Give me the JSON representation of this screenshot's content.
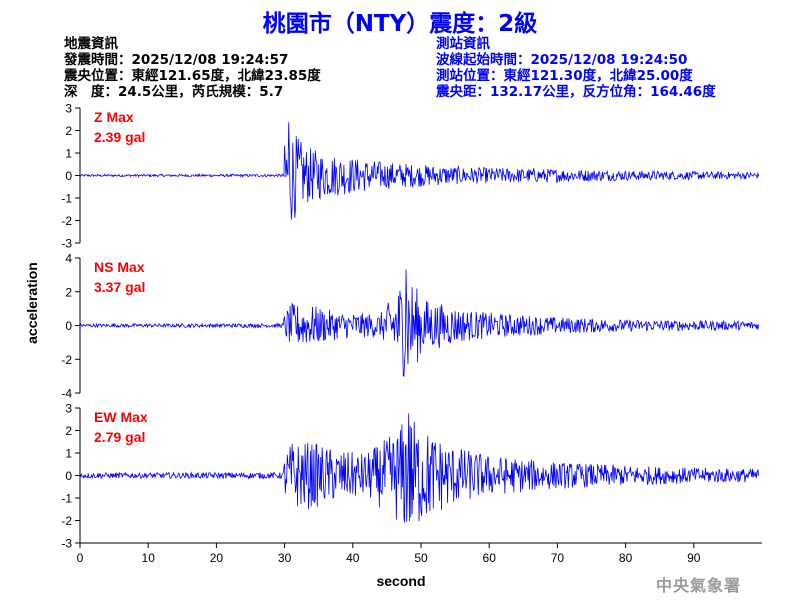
{
  "title": "桃園市（NTY）震度：2級",
  "quake_info": {
    "header": "地震資訊",
    "origin_time": "發震時間：2025/12/08 19:24:57",
    "epicenter": "震央位置：東經121.65度，北緯23.85度",
    "depth_magnitude": "深　度：24.5公里，芮氏規模：5.7"
  },
  "station_info": {
    "header": "測站資訊",
    "wave_start": "波線起始時間：2025/12/08 19:24:50",
    "station_location": "測站位置：東經121.30度，北緯25.00度",
    "distance_azimuth": "震央距：132.17公里，反方位角：164.46度"
  },
  "watermark": "中央氣象署",
  "colors": {
    "trace": "#0000ff",
    "max_label": "#ff0000",
    "axis": "#000000"
  },
  "chart_data": {
    "type": "line",
    "xlabel": "second",
    "ylabel": "acceleration",
    "xlim": [
      0,
      100
    ],
    "x_ticks": [
      0,
      10,
      20,
      30,
      40,
      50,
      60,
      70,
      80,
      90
    ],
    "grid": false,
    "panels": [
      {
        "name": "Z",
        "label": "Z Max",
        "max_text": "2.39 gal",
        "peak": 2.39,
        "ylim": [
          -3,
          3
        ],
        "y_ticks": [
          -3,
          -2,
          -1,
          0,
          1,
          2,
          3
        ],
        "envelope": [
          [
            0,
            0.05
          ],
          [
            29.8,
            0.06
          ],
          [
            30,
            1.4
          ],
          [
            30.6,
            2.39
          ],
          [
            31.5,
            1.9
          ],
          [
            33,
            1.3
          ],
          [
            36,
            1.0
          ],
          [
            40,
            0.8
          ],
          [
            45,
            0.6
          ],
          [
            50,
            0.5
          ],
          [
            55,
            0.4
          ],
          [
            60,
            0.35
          ],
          [
            70,
            0.3
          ],
          [
            80,
            0.22
          ],
          [
            90,
            0.18
          ],
          [
            100,
            0.15
          ]
        ]
      },
      {
        "name": "NS",
        "label": "NS Max",
        "max_text": "3.37 gal",
        "peak": 3.37,
        "ylim": [
          -4,
          4
        ],
        "y_ticks": [
          -4,
          -2,
          0,
          2,
          4
        ],
        "envelope": [
          [
            0,
            0.1
          ],
          [
            29.8,
            0.12
          ],
          [
            30,
            0.8
          ],
          [
            31,
            1.3
          ],
          [
            34,
            1.2
          ],
          [
            38,
            0.8
          ],
          [
            44,
            0.7
          ],
          [
            46,
            1.8
          ],
          [
            47.8,
            3.37
          ],
          [
            49,
            2.5
          ],
          [
            50.5,
            1.6
          ],
          [
            53,
            1.3
          ],
          [
            57,
            0.9
          ],
          [
            62,
            0.7
          ],
          [
            70,
            0.5
          ],
          [
            80,
            0.35
          ],
          [
            90,
            0.3
          ],
          [
            100,
            0.25
          ]
        ]
      },
      {
        "name": "EW",
        "label": "EW Max",
        "max_text": "2.79 gal",
        "peak": 2.79,
        "ylim": [
          -3,
          3
        ],
        "y_ticks": [
          -3,
          -2,
          -1,
          0,
          1,
          2,
          3
        ],
        "envelope": [
          [
            0,
            0.12
          ],
          [
            29.8,
            0.14
          ],
          [
            30,
            1.0
          ],
          [
            31,
            1.5
          ],
          [
            34,
            1.5
          ],
          [
            38,
            1.1
          ],
          [
            42,
            1.0
          ],
          [
            46,
            1.9
          ],
          [
            48.2,
            2.79
          ],
          [
            50,
            2.2
          ],
          [
            52,
            1.8
          ],
          [
            55,
            1.3
          ],
          [
            60,
            0.9
          ],
          [
            70,
            0.6
          ],
          [
            80,
            0.45
          ],
          [
            90,
            0.35
          ],
          [
            100,
            0.3
          ]
        ]
      }
    ]
  }
}
